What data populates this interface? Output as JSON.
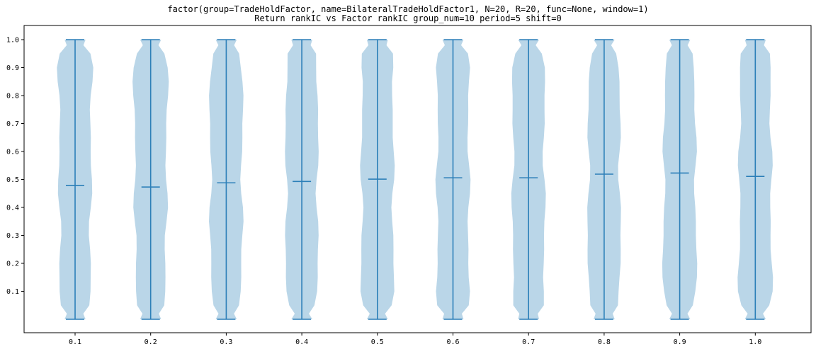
{
  "chart_data": {
    "type": "violin",
    "title": "factor(group=TradeHoldFactor, name=BilateralTradeHoldFactor1, N=20, R=20, func=None, window=1)",
    "subtitle": "Return rankIC vs Factor rankIC group_num=10 period=5 shift=0",
    "xlabel": "",
    "ylabel": "",
    "categories": [
      "0.1",
      "0.2",
      "0.3",
      "0.4",
      "0.5",
      "0.6",
      "0.7",
      "0.8",
      "0.9",
      "1.0"
    ],
    "y_ticks": [
      "0.1",
      "0.2",
      "0.3",
      "0.4",
      "0.5",
      "0.6",
      "0.7",
      "0.8",
      "0.9",
      "1.0"
    ],
    "ylim": [
      -0.04,
      1.04
    ],
    "min": [
      0,
      0,
      0,
      0,
      0,
      0,
      0,
      0,
      0,
      0
    ],
    "max": [
      1,
      1,
      1,
      1,
      1,
      1,
      1,
      1,
      1,
      1
    ],
    "means": [
      0.478,
      0.473,
      0.488,
      0.493,
      0.501,
      0.506,
      0.506,
      0.519,
      0.523,
      0.511
    ],
    "grid": false,
    "colors": {
      "body": "#bad6e8",
      "lines": "#2c7fb8"
    }
  }
}
